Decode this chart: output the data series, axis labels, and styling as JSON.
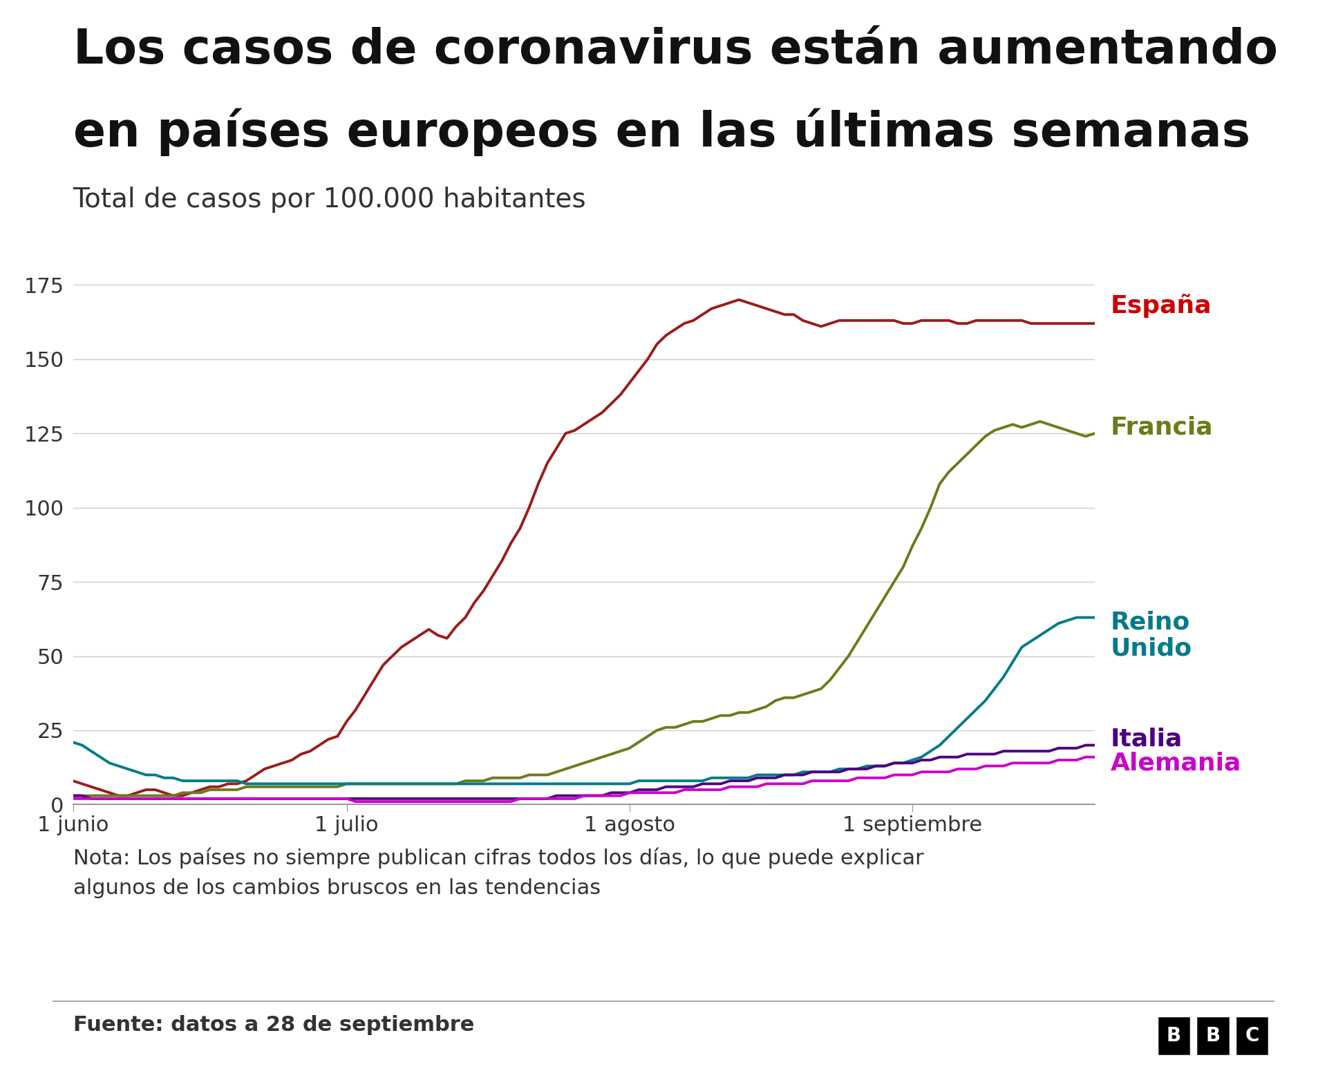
{
  "title_line1": "Los casos de coronavirus están aumentando",
  "title_line2": "en países europeos en las últimas semanas",
  "subtitle": "Total de casos por 100.000 habitantes",
  "note": "Nota: Los países no siempre publican cifras todos los días, lo que puede explicar\nalgunos de los cambios bruscos en las tendencias",
  "source": "Fuente: datos a 28 de septiembre",
  "background_color": "#ffffff",
  "yticks": [
    0,
    25,
    50,
    75,
    100,
    125,
    150,
    175
  ],
  "xtick_labels": [
    "1 junio",
    "1 julio",
    "1 agosto",
    "1 septiembre"
  ],
  "countries": {
    "España": {
      "color": "#9b1c1c",
      "label_color": "#cc0000",
      "values": [
        8,
        7,
        6,
        5,
        4,
        3,
        3,
        4,
        5,
        5,
        4,
        3,
        3,
        4,
        5,
        6,
        6,
        7,
        7,
        8,
        10,
        12,
        13,
        14,
        15,
        17,
        18,
        20,
        22,
        23,
        28,
        32,
        37,
        42,
        47,
        50,
        53,
        55,
        57,
        59,
        57,
        56,
        60,
        63,
        68,
        72,
        77,
        82,
        88,
        93,
        100,
        108,
        115,
        120,
        125,
        126,
        128,
        130,
        132,
        135,
        138,
        142,
        146,
        150,
        155,
        158,
        160,
        162,
        163,
        165,
        167,
        168,
        169,
        170,
        169,
        168,
        167,
        166,
        165,
        165,
        163,
        162,
        161,
        162,
        163,
        163,
        163,
        163,
        163,
        163,
        163,
        162,
        162,
        163,
        163,
        163,
        163,
        162,
        162,
        163,
        163,
        163,
        163,
        163,
        163,
        162,
        162,
        162,
        162,
        162,
        162,
        162,
        162
      ]
    },
    "Francia": {
      "color": "#6b7c1a",
      "label_color": "#6b7c1a",
      "values": [
        3,
        3,
        3,
        3,
        3,
        3,
        3,
        3,
        3,
        3,
        3,
        3,
        4,
        4,
        4,
        5,
        5,
        5,
        5,
        6,
        6,
        6,
        6,
        6,
        6,
        6,
        6,
        6,
        6,
        6,
        7,
        7,
        7,
        7,
        7,
        7,
        7,
        7,
        7,
        7,
        7,
        7,
        7,
        8,
        8,
        8,
        9,
        9,
        9,
        9,
        10,
        10,
        10,
        11,
        12,
        13,
        14,
        15,
        16,
        17,
        18,
        19,
        21,
        23,
        25,
        26,
        26,
        27,
        28,
        28,
        29,
        30,
        30,
        31,
        31,
        32,
        33,
        35,
        36,
        36,
        37,
        38,
        39,
        42,
        46,
        50,
        55,
        60,
        65,
        70,
        75,
        80,
        87,
        93,
        100,
        108,
        112,
        115,
        118,
        121,
        124,
        126,
        127,
        128,
        127,
        128,
        129,
        128,
        127,
        126,
        125,
        124,
        125
      ]
    },
    "ReinoUnido": {
      "color": "#007b8b",
      "label_color": "#007b8b",
      "values": [
        21,
        20,
        18,
        16,
        14,
        13,
        12,
        11,
        10,
        10,
        9,
        9,
        8,
        8,
        8,
        8,
        8,
        8,
        8,
        7,
        7,
        7,
        7,
        7,
        7,
        7,
        7,
        7,
        7,
        7,
        7,
        7,
        7,
        7,
        7,
        7,
        7,
        7,
        7,
        7,
        7,
        7,
        7,
        7,
        7,
        7,
        7,
        7,
        7,
        7,
        7,
        7,
        7,
        7,
        7,
        7,
        7,
        7,
        7,
        7,
        7,
        7,
        8,
        8,
        8,
        8,
        8,
        8,
        8,
        8,
        9,
        9,
        9,
        9,
        9,
        10,
        10,
        10,
        10,
        10,
        11,
        11,
        11,
        11,
        12,
        12,
        12,
        13,
        13,
        13,
        14,
        14,
        15,
        16,
        18,
        20,
        23,
        26,
        29,
        32,
        35,
        39,
        43,
        48,
        53,
        55,
        57,
        59,
        61,
        62,
        63,
        63,
        63
      ]
    },
    "Italia": {
      "color": "#4b0082",
      "label_color": "#4b0082",
      "values": [
        3,
        3,
        2,
        2,
        2,
        2,
        2,
        2,
        2,
        2,
        2,
        2,
        2,
        2,
        2,
        2,
        2,
        2,
        2,
        2,
        2,
        2,
        2,
        2,
        2,
        2,
        2,
        2,
        2,
        2,
        2,
        2,
        2,
        2,
        2,
        2,
        2,
        2,
        2,
        2,
        2,
        2,
        2,
        2,
        2,
        2,
        2,
        2,
        2,
        2,
        2,
        2,
        2,
        3,
        3,
        3,
        3,
        3,
        3,
        4,
        4,
        4,
        5,
        5,
        5,
        6,
        6,
        6,
        6,
        7,
        7,
        7,
        8,
        8,
        8,
        9,
        9,
        9,
        10,
        10,
        10,
        11,
        11,
        11,
        11,
        12,
        12,
        12,
        13,
        13,
        14,
        14,
        14,
        15,
        15,
        16,
        16,
        16,
        17,
        17,
        17,
        17,
        18,
        18,
        18,
        18,
        18,
        18,
        19,
        19,
        19,
        20,
        20
      ]
    },
    "Alemania": {
      "color": "#cc00cc",
      "label_color": "#cc00cc",
      "values": [
        2,
        2,
        2,
        2,
        2,
        2,
        2,
        2,
        2,
        2,
        2,
        2,
        2,
        2,
        2,
        2,
        2,
        2,
        2,
        2,
        2,
        2,
        2,
        2,
        2,
        2,
        2,
        2,
        2,
        2,
        2,
        1,
        1,
        1,
        1,
        1,
        1,
        1,
        1,
        1,
        1,
        1,
        1,
        1,
        1,
        1,
        1,
        1,
        1,
        2,
        2,
        2,
        2,
        2,
        2,
        2,
        3,
        3,
        3,
        3,
        3,
        4,
        4,
        4,
        4,
        4,
        4,
        5,
        5,
        5,
        5,
        5,
        6,
        6,
        6,
        6,
        7,
        7,
        7,
        7,
        7,
        8,
        8,
        8,
        8,
        8,
        9,
        9,
        9,
        9,
        10,
        10,
        10,
        11,
        11,
        11,
        11,
        12,
        12,
        12,
        13,
        13,
        13,
        14,
        14,
        14,
        14,
        14,
        15,
        15,
        15,
        16,
        16
      ]
    }
  },
  "xlim": [
    0,
    112
  ],
  "ylim": [
    0,
    180
  ],
  "xtick_positions": [
    0,
    30,
    61,
    92
  ],
  "grid_color": "#cccccc",
  "axis_color": "#999999",
  "country_labels": {
    "España": {
      "text": "España",
      "y": 168,
      "color": "#cc0000"
    },
    "Francia": {
      "text": "Francia",
      "y": 127,
      "color": "#6b7c1a"
    },
    "ReinoUnido": {
      "text": "Reino\nUnido",
      "y": 57,
      "color": "#007b8b"
    },
    "Italia": {
      "text": "Italia",
      "y": 22,
      "color": "#4b0082"
    },
    "Alemania": {
      "text": "Alemania",
      "y": 14,
      "color": "#cc00cc"
    }
  }
}
